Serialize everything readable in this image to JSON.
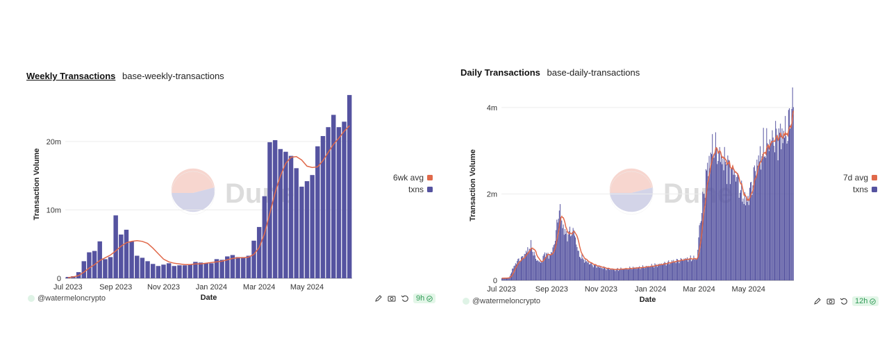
{
  "colors": {
    "bar": "#5553a0",
    "avg_line": "#e0694a",
    "grid": "#ececec",
    "axis_text": "#333333"
  },
  "watermark": {
    "text": "Dune"
  },
  "chart_data": [
    {
      "type": "bar",
      "title": "Weekly Transactions",
      "subtitle": "base-weekly-transactions",
      "xlabel": "Date",
      "ylabel": "Transaction Volume",
      "x_ticks": [
        "Jul 2023",
        "Sep 2023",
        "Nov 2023",
        "Jan 2024",
        "Mar 2024",
        "May 2024"
      ],
      "x_tick_index": [
        0,
        9,
        18,
        27,
        36,
        45
      ],
      "y_ticks": [
        {
          "value": 0,
          "label": "0"
        },
        {
          "value": 10000000,
          "label": "10m"
        },
        {
          "value": 20000000,
          "label": "20m"
        }
      ],
      "ylim": [
        0,
        27500000
      ],
      "grid": true,
      "legend_position": "right",
      "series": [
        {
          "name": "txns",
          "kind": "bar",
          "values": [
            200000,
            300000,
            900000,
            2500000,
            3800000,
            4000000,
            5400000,
            2800000,
            3100000,
            9200000,
            6400000,
            7100000,
            5400000,
            3300000,
            3000000,
            2500000,
            2100000,
            1800000,
            2000000,
            2200000,
            1800000,
            1900000,
            1900000,
            2000000,
            2400000,
            2300000,
            2200000,
            2200000,
            2800000,
            2700000,
            3200000,
            3400000,
            3100000,
            3100000,
            3300000,
            5500000,
            7500000,
            12000000,
            19900000,
            20200000,
            18900000,
            18500000,
            17900000,
            16100000,
            13400000,
            14200000,
            15100000,
            19300000,
            20800000,
            22100000,
            23900000,
            22100000,
            22900000,
            26800000
          ]
        },
        {
          "name": "6wk avg",
          "kind": "line",
          "values": [
            100000,
            200000,
            400000,
            900000,
            1500000,
            2000000,
            2600000,
            3000000,
            3400000,
            4000000,
            4700000,
            5200000,
            5400000,
            5500000,
            5400000,
            5100000,
            4400000,
            3600000,
            2800000,
            2400000,
            2200000,
            2100000,
            2000000,
            2000000,
            2100000,
            2100000,
            2200000,
            2300000,
            2400000,
            2500000,
            2700000,
            2900000,
            3000000,
            3000000,
            3100000,
            3500000,
            4500000,
            6500000,
            9500000,
            12500000,
            15000000,
            16800000,
            17700000,
            17800000,
            17300000,
            16400000,
            16200000,
            16300000,
            17200000,
            18400000,
            19600000,
            20500000,
            21500000,
            22300000
          ]
        }
      ]
    },
    {
      "type": "bar",
      "title": "Daily Transactions",
      "subtitle": "base-daily-transactions",
      "xlabel": "Date",
      "ylabel": "Transaction Volume",
      "x_ticks": [
        "Jul 2023",
        "Sep 2023",
        "Nov 2023",
        "Jan 2024",
        "Mar 2024",
        "May 2024"
      ],
      "x_tick_dates": [
        "2023-07-01",
        "2023-09-01",
        "2023-11-01",
        "2024-01-01",
        "2024-03-01",
        "2024-05-01"
      ],
      "date_range": [
        "2023-07-01",
        "2024-06-25"
      ],
      "y_ticks": [
        {
          "value": 0,
          "label": "0"
        },
        {
          "value": 2000000,
          "label": "2m"
        },
        {
          "value": 4000000,
          "label": "4m"
        }
      ],
      "ylim": [
        0,
        4400000
      ],
      "grid": true,
      "legend_position": "right",
      "anchors": [
        [
          "2023-07-01",
          50000
        ],
        [
          "2023-07-10",
          60000
        ],
        [
          "2023-07-14",
          250000
        ],
        [
          "2023-07-20",
          450000
        ],
        [
          "2023-07-26",
          520000
        ],
        [
          "2023-08-02",
          700000
        ],
        [
          "2023-08-06",
          800000
        ],
        [
          "2023-08-12",
          500000
        ],
        [
          "2023-08-18",
          400000
        ],
        [
          "2023-08-24",
          650000
        ],
        [
          "2023-08-28",
          550000
        ],
        [
          "2023-09-02",
          700000
        ],
        [
          "2023-09-06",
          1100000
        ],
        [
          "2023-09-10",
          1700000
        ],
        [
          "2023-09-13",
          1350000
        ],
        [
          "2023-09-18",
          1050000
        ],
        [
          "2023-09-23",
          1100000
        ],
        [
          "2023-09-28",
          1150000
        ],
        [
          "2023-10-04",
          600000
        ],
        [
          "2023-10-12",
          450000
        ],
        [
          "2023-10-22",
          350000
        ],
        [
          "2023-11-05",
          280000
        ],
        [
          "2023-11-15",
          250000
        ],
        [
          "2023-12-01",
          270000
        ],
        [
          "2023-12-20",
          300000
        ],
        [
          "2024-01-01",
          330000
        ],
        [
          "2024-01-15",
          380000
        ],
        [
          "2024-02-01",
          450000
        ],
        [
          "2024-02-15",
          500000
        ],
        [
          "2024-02-27",
          500000
        ],
        [
          "2024-03-01",
          1200000
        ],
        [
          "2024-03-05",
          1800000
        ],
        [
          "2024-03-10",
          2500000
        ],
        [
          "2024-03-18",
          3100000
        ],
        [
          "2024-03-25",
          2900000
        ],
        [
          "2024-04-05",
          2650000
        ],
        [
          "2024-04-15",
          2450000
        ],
        [
          "2024-04-22",
          2000000
        ],
        [
          "2024-04-28",
          1800000
        ],
        [
          "2024-05-03",
          2100000
        ],
        [
          "2024-05-10",
          2650000
        ],
        [
          "2024-05-20",
          3050000
        ],
        [
          "2024-06-01",
          3300000
        ],
        [
          "2024-06-10",
          3350000
        ],
        [
          "2024-06-18",
          3450000
        ],
        [
          "2024-06-22",
          3900000
        ],
        [
          "2024-06-25",
          4150000
        ]
      ],
      "series": [
        {
          "name": "txns",
          "kind": "bar"
        },
        {
          "name": "7d avg",
          "kind": "line"
        }
      ]
    }
  ],
  "panels": [
    {
      "author": "@watermeloncrypto",
      "refresh": "9h"
    },
    {
      "author": "@watermeloncrypto",
      "refresh": "12h"
    }
  ]
}
